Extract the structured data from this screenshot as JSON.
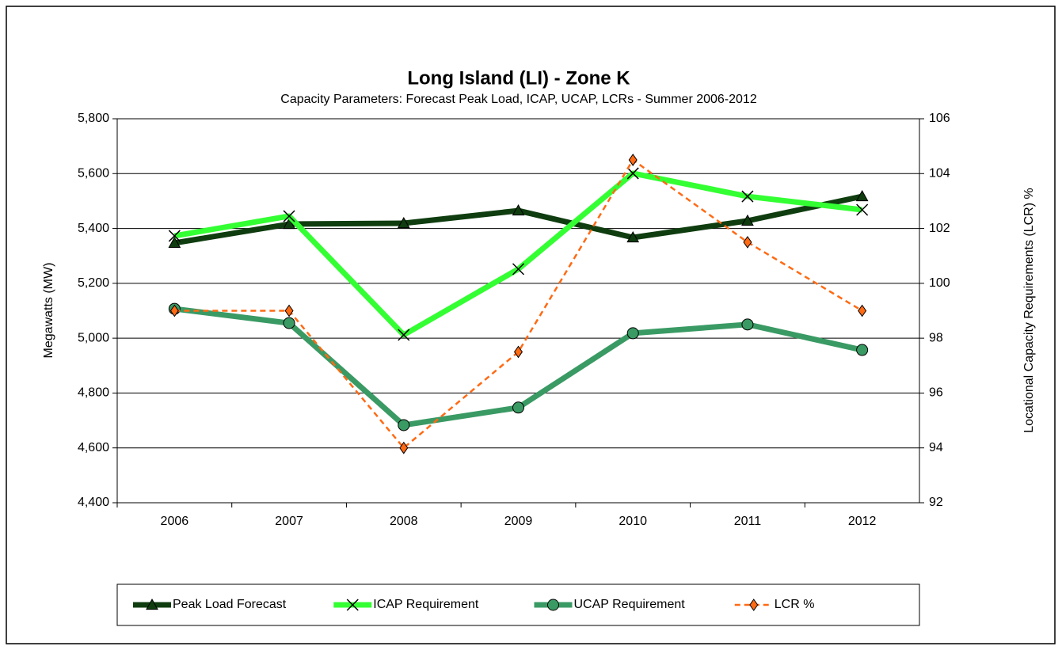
{
  "chart_data": {
    "type": "line",
    "title": "Long Island (LI) - Zone K",
    "subtitle": "Capacity Parameters: Forecast Peak Load, ICAP, UCAP, LCRs - Summer 2006-2012",
    "y_label": "Megawatts (MW)",
    "y2_label": "Locational Capacity Requirements (LCR) %",
    "categories": [
      "2006",
      "2007",
      "2008",
      "2009",
      "2010",
      "2011",
      "2012"
    ],
    "ylim": [
      4400,
      5800
    ],
    "yticks": [
      {
        "value": 4400,
        "label": "4,400"
      },
      {
        "value": 4600,
        "label": "4,600"
      },
      {
        "value": 4800,
        "label": "4,800"
      },
      {
        "value": 5000,
        "label": "5,000"
      },
      {
        "value": 5200,
        "label": "5,200"
      },
      {
        "value": 5400,
        "label": "5,400"
      },
      {
        "value": 5600,
        "label": "5,600"
      },
      {
        "value": 5800,
        "label": "5,800"
      }
    ],
    "y2lim": [
      92,
      106
    ],
    "y2ticks": [
      92,
      94,
      96,
      98,
      100,
      102,
      104,
      106
    ],
    "grid": true,
    "legend": "bottom",
    "series": [
      {
        "name": "Peak Load Forecast",
        "color": "#0f3d0f",
        "marker": "triangle",
        "values": [
          5347,
          5416,
          5419,
          5465,
          5367,
          5428,
          5517
        ]
      },
      {
        "name": "ICAP Requirement",
        "color": "#33ff33",
        "marker": "x",
        "values": [
          5373,
          5445,
          5012,
          5252,
          5601,
          5517,
          5468
        ]
      },
      {
        "name": "UCAP Requirement",
        "color": "#3a9a64",
        "marker": "circle",
        "values": [
          5107,
          5055,
          4683,
          4747,
          5018,
          5050,
          4957
        ]
      },
      {
        "name": "LCR %",
        "color": "#ff6a13",
        "marker": "diamond",
        "dash": true,
        "axis": "y2",
        "values": [
          99.0,
          99.0,
          94.0,
          97.5,
          104.5,
          101.5,
          99.0
        ]
      }
    ]
  }
}
